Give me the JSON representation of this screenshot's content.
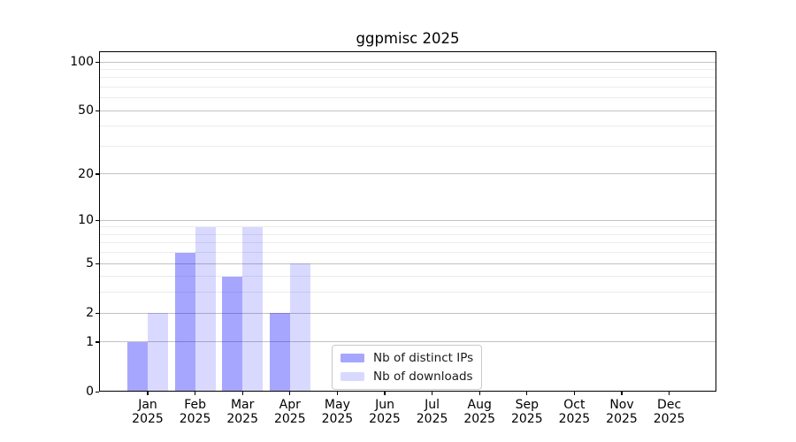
{
  "chart_data": {
    "type": "bar",
    "title": "ggpmisc 2025",
    "x_axis": {
      "categories": [
        "Jan",
        "Feb",
        "Mar",
        "Apr",
        "May",
        "Jun",
        "Jul",
        "Aug",
        "Sep",
        "Oct",
        "Nov",
        "Dec"
      ],
      "year_label": "2025"
    },
    "y_axis": {
      "scale": "log1p",
      "major_ticks": [
        0,
        1,
        2,
        5,
        10,
        20,
        50,
        100
      ],
      "minor_ticks": [
        3,
        4,
        6,
        7,
        8,
        9,
        30,
        40,
        60,
        70,
        80,
        90
      ],
      "ref_max": 100,
      "ylim": [
        0,
        116
      ]
    },
    "series": [
      {
        "name": "Nb of distinct IPs",
        "color": "rgba(0,0,255,0.35)",
        "values": [
          1,
          6,
          4,
          2,
          0,
          0,
          0,
          0,
          0,
          0,
          0,
          0
        ]
      },
      {
        "name": "Nb of downloads",
        "color": "rgba(0,0,255,0.15)",
        "values": [
          2,
          9,
          9,
          5,
          0,
          0,
          0,
          0,
          0,
          0,
          0,
          0
        ]
      }
    ],
    "legend": {
      "position": "lower center"
    },
    "grid": true
  },
  "colors": {
    "background": "#ffffff",
    "major_grid": "#c2c2c2",
    "minor_grid": "#ececec",
    "axis": "#000000",
    "text": "#000000",
    "legend_border": "#c9c9c9"
  }
}
